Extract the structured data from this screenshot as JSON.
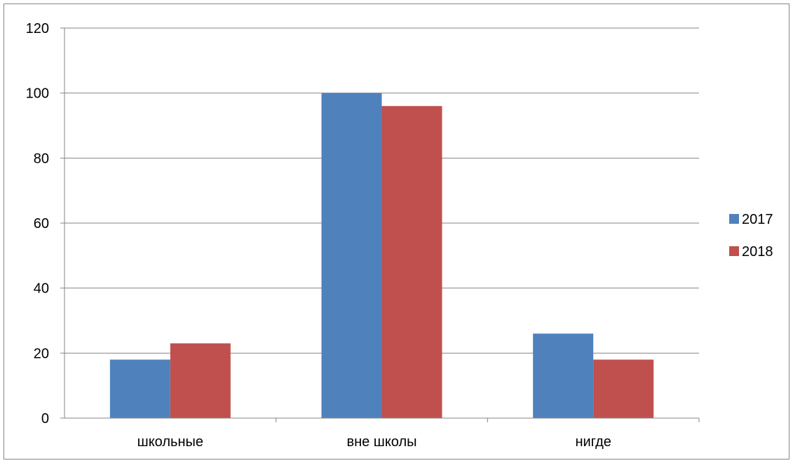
{
  "chart_data": {
    "type": "bar",
    "title": "",
    "xlabel": "",
    "ylabel": "",
    "categories": [
      "школьные",
      "вне школы",
      "нигде"
    ],
    "series": [
      {
        "name": "2017",
        "color": "#4F81BD",
        "values": [
          18,
          100,
          26
        ]
      },
      {
        "name": "2018",
        "color": "#C0504D",
        "values": [
          23,
          96,
          18
        ]
      }
    ],
    "ylim": [
      0,
      120
    ],
    "yticks": [
      0,
      20,
      40,
      60,
      80,
      100,
      120
    ],
    "grid": true,
    "legend_position": "right",
    "gridline_color": "#868686",
    "axis_color": "#868686"
  }
}
